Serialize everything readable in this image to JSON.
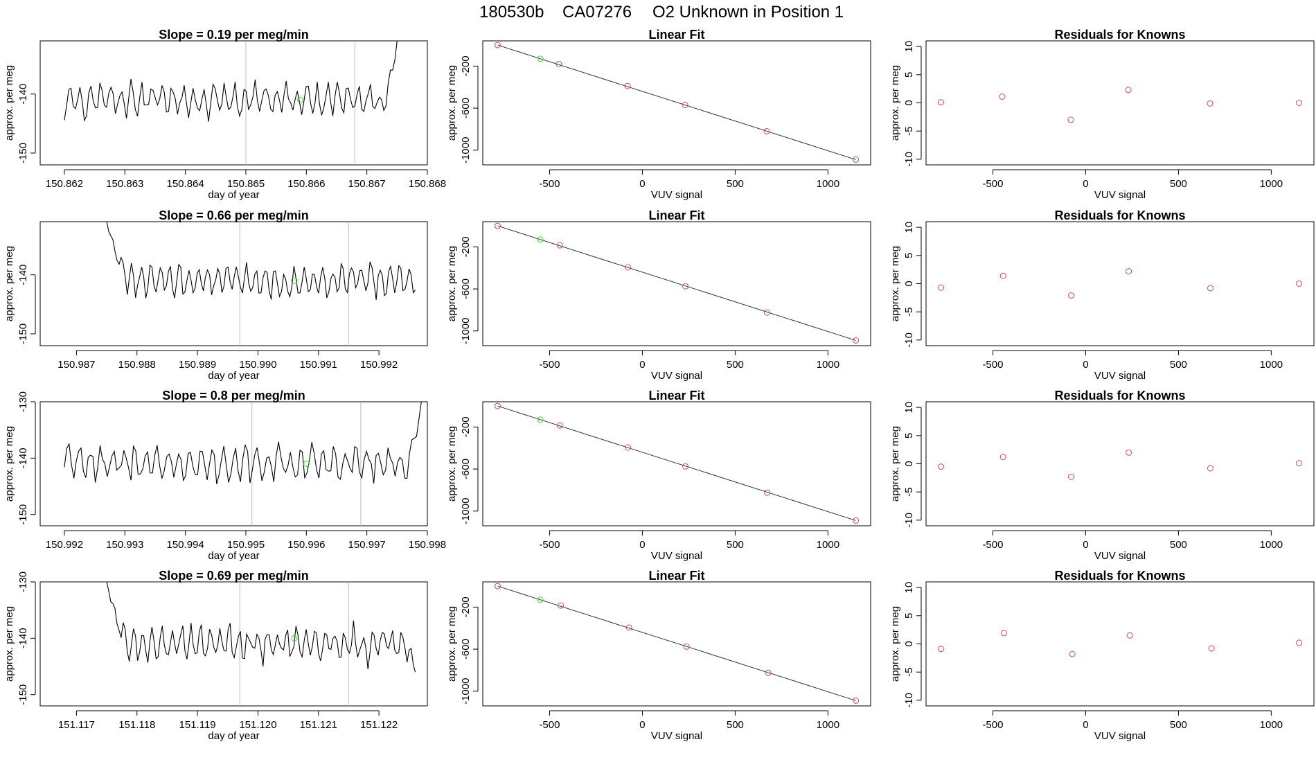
{
  "header": {
    "date_code": "180530b",
    "tank_id": "CA07276",
    "description": "O2 Unknown in Position  1"
  },
  "colors": {
    "trace": "#000000",
    "marker_green": "#33dd33",
    "marker_red": "#c8504a",
    "vline": "#bbbbbb",
    "fitline": "#333333"
  },
  "chart_data": [
    {
      "type": "line",
      "row": 1,
      "column": "trace",
      "title": "Slope =  0.19  per meg/min",
      "xlabel": "day of year",
      "ylabel": "approx. per meg",
      "xlim": [
        150.8616,
        150.868
      ],
      "ylim": [
        -152,
        -131
      ],
      "xticks": [
        150.862,
        150.863,
        150.864,
        150.865,
        150.866,
        150.867,
        150.868
      ],
      "xtick_labels": [
        "150.862",
        "150.863",
        "150.864",
        "150.865",
        "150.866",
        "150.867",
        "150.868"
      ],
      "yticks": [
        -150,
        -140
      ],
      "ytick_labels": [
        "-150",
        "-140"
      ],
      "vlines": [
        150.865,
        150.8668
      ],
      "marker": {
        "x": 150.8659,
        "y": -141
      },
      "x_start": 150.862,
      "x_end": 150.8675,
      "mean": -141,
      "amp": 2.6,
      "seed": 11,
      "start_spike": null,
      "end_spike": {
        "to": -131
      }
    },
    {
      "type": "line",
      "row": 2,
      "column": "trace",
      "title": "Slope =  0.66  per meg/min",
      "xlabel": "day of year",
      "ylabel": "approx. per meg",
      "xlim": [
        150.9864,
        150.9928
      ],
      "ylim": [
        -152,
        -131
      ],
      "xticks": [
        150.987,
        150.988,
        150.989,
        150.99,
        150.991,
        150.992
      ],
      "xtick_labels": [
        "150.987",
        "150.988",
        "150.989",
        "150.990",
        "150.991",
        "150.992"
      ],
      "yticks": [
        -150,
        -140
      ],
      "ytick_labels": [
        "-150",
        "-140"
      ],
      "vlines": [
        150.9897,
        150.9915
      ],
      "marker": {
        "x": 150.9906,
        "y": -141
      },
      "x_start": 150.9875,
      "x_end": 150.9926,
      "mean": -141,
      "amp": 2.6,
      "seed": 23,
      "start_spike": {
        "from": -131
      },
      "end_spike": null
    },
    {
      "type": "line",
      "row": 3,
      "column": "trace",
      "title": "Slope =  0.8  per meg/min",
      "xlabel": "day of year",
      "ylabel": "approx. per meg",
      "xlim": [
        150.9916,
        150.998
      ],
      "ylim": [
        -152,
        -130
      ],
      "xticks": [
        150.992,
        150.993,
        150.994,
        150.995,
        150.996,
        150.997,
        150.998
      ],
      "xtick_labels": [
        "150.992",
        "150.993",
        "150.994",
        "150.995",
        "150.996",
        "150.997",
        "150.998"
      ],
      "yticks": [
        -150,
        -140,
        -130
      ],
      "ytick_labels": [
        "-150",
        "-140",
        "-130"
      ],
      "vlines": [
        150.9951,
        150.9969
      ],
      "marker": {
        "x": 150.996,
        "y": -141
      },
      "x_start": 150.992,
      "x_end": 150.9979,
      "mean": -141,
      "amp": 3.0,
      "seed": 37,
      "start_spike": null,
      "end_spike": {
        "to": -130
      }
    },
    {
      "type": "line",
      "row": 4,
      "column": "trace",
      "title": "Slope =  0.69  per meg/min",
      "xlabel": "day of year",
      "ylabel": "approx. per meg",
      "xlim": [
        151.1164,
        151.1228
      ],
      "ylim": [
        -152,
        -130
      ],
      "xticks": [
        151.117,
        151.118,
        151.119,
        151.12,
        151.121,
        151.122
      ],
      "xtick_labels": [
        "151.117",
        "151.118",
        "151.119",
        "151.120",
        "151.121",
        "151.122"
      ],
      "yticks": [
        -150,
        -140,
        -130
      ],
      "ytick_labels": [
        "-150",
        "-140",
        "-130"
      ],
      "vlines": [
        151.1197,
        151.1215
      ],
      "marker": {
        "x": 151.1206,
        "y": -140
      },
      "x_start": 151.1175,
      "x_end": 151.1226,
      "mean": -141,
      "amp": 2.8,
      "seed": 53,
      "start_spike": {
        "from": -130
      },
      "end_spike": {
        "to": -146
      }
    },
    {
      "type": "scatter",
      "row": 1,
      "column": "fit",
      "title": "Linear Fit",
      "xlabel": "VUV signal",
      "ylabel": "approx. per meg",
      "xlim": [
        -860,
        1230
      ],
      "ylim": [
        -1140,
        40
      ],
      "xticks": [
        -500,
        0,
        500,
        1000
      ],
      "xtick_labels": [
        "-500",
        "0",
        "500",
        "1000"
      ],
      "yticks": [
        -1000,
        -600,
        -200
      ],
      "ytick_labels": [
        "-1000",
        "-600",
        "-200"
      ],
      "fit_line": [
        [
          -780,
          0
        ],
        [
          1150,
          -1090
        ]
      ],
      "knowns": [
        [
          -780,
          0
        ],
        [
          -450,
          -180
        ],
        [
          -80,
          -390
        ],
        [
          230,
          -570
        ],
        [
          670,
          -820
        ],
        [
          1150,
          -1090
        ]
      ],
      "unknown": [
        -550,
        -130
      ]
    },
    {
      "type": "scatter",
      "row": 2,
      "column": "fit",
      "title": "Linear Fit",
      "xlabel": "VUV signal",
      "ylabel": "approx. per meg",
      "xlim": [
        -860,
        1230
      ],
      "ylim": [
        -1140,
        40
      ],
      "xticks": [
        -500,
        0,
        500,
        1000
      ],
      "xtick_labels": [
        "-500",
        "0",
        "500",
        "1000"
      ],
      "yticks": [
        -1000,
        -600,
        -200
      ],
      "ytick_labels": [
        "-1000",
        "-600",
        "-200"
      ],
      "fit_line": [
        [
          -780,
          0
        ],
        [
          1150,
          -1090
        ]
      ],
      "knowns": [
        [
          -780,
          0
        ],
        [
          -445,
          -185
        ],
        [
          -78,
          -395
        ],
        [
          232,
          -575
        ],
        [
          672,
          -825
        ],
        [
          1150,
          -1090
        ]
      ],
      "unknown": [
        -550,
        -130
      ]
    },
    {
      "type": "scatter",
      "row": 3,
      "column": "fit",
      "title": "Linear Fit",
      "xlabel": "VUV signal",
      "ylabel": "approx. per meg",
      "xlim": [
        -860,
        1230
      ],
      "ylim": [
        -1140,
        40
      ],
      "xticks": [
        -500,
        0,
        500,
        1000
      ],
      "xtick_labels": [
        "-500",
        "0",
        "500",
        "1000"
      ],
      "yticks": [
        -1000,
        -600,
        -200
      ],
      "ytick_labels": [
        "-1000",
        "-600",
        "-200"
      ],
      "fit_line": [
        [
          -780,
          0
        ],
        [
          1150,
          -1090
        ]
      ],
      "knowns": [
        [
          -780,
          0
        ],
        [
          -445,
          -185
        ],
        [
          -78,
          -395
        ],
        [
          232,
          -575
        ],
        [
          672,
          -825
        ],
        [
          1150,
          -1090
        ]
      ],
      "unknown": [
        -550,
        -130
      ]
    },
    {
      "type": "scatter",
      "row": 4,
      "column": "fit",
      "title": "Linear Fit",
      "xlabel": "VUV signal",
      "ylabel": "approx. per meg",
      "xlim": [
        -860,
        1230
      ],
      "ylim": [
        -1140,
        40
      ],
      "xticks": [
        -500,
        0,
        500,
        1000
      ],
      "xtick_labels": [
        "-500",
        "0",
        "500",
        "1000"
      ],
      "yticks": [
        -1000,
        -600,
        -200
      ],
      "ytick_labels": [
        "-1000",
        "-600",
        "-200"
      ],
      "fit_line": [
        [
          -780,
          0
        ],
        [
          1150,
          -1090
        ]
      ],
      "knowns": [
        [
          -780,
          0
        ],
        [
          -440,
          -185
        ],
        [
          -72,
          -395
        ],
        [
          238,
          -575
        ],
        [
          678,
          -825
        ],
        [
          1150,
          -1090
        ]
      ],
      "unknown": [
        -550,
        -130
      ]
    },
    {
      "type": "scatter",
      "row": 1,
      "column": "residuals",
      "title": "Residuals for Knowns",
      "xlabel": "VUV signal",
      "ylabel": "approx. per meg",
      "xlim": [
        -860,
        1230
      ],
      "ylim": [
        -11,
        11
      ],
      "xticks": [
        -500,
        0,
        500,
        1000
      ],
      "xtick_labels": [
        "-500",
        "0",
        "500",
        "1000"
      ],
      "yticks": [
        -10,
        -5,
        0,
        5,
        10
      ],
      "ytick_labels": [
        "-10",
        "-5",
        "0",
        "5",
        "10"
      ],
      "points": [
        [
          -780,
          0.1
        ],
        [
          -450,
          1.1
        ],
        [
          -80,
          -3.0
        ],
        [
          230,
          2.3
        ],
        [
          670,
          -0.1
        ],
        [
          1150,
          0.0
        ]
      ]
    },
    {
      "type": "scatter",
      "row": 2,
      "column": "residuals",
      "title": "Residuals for Knowns",
      "xlabel": "VUV signal",
      "ylabel": "approx. per meg",
      "xlim": [
        -860,
        1230
      ],
      "ylim": [
        -11,
        11
      ],
      "xticks": [
        -500,
        0,
        500,
        1000
      ],
      "xtick_labels": [
        "-500",
        "0",
        "500",
        "1000"
      ],
      "yticks": [
        -10,
        -5,
        0,
        5,
        10
      ],
      "ytick_labels": [
        "-10",
        "-5",
        "0",
        "5",
        "10"
      ],
      "points": [
        [
          -780,
          -0.7
        ],
        [
          -445,
          1.4
        ],
        [
          -78,
          -2.1
        ],
        [
          232,
          2.2
        ],
        [
          672,
          -0.8
        ],
        [
          1150,
          0.0
        ]
      ]
    },
    {
      "type": "scatter",
      "row": 3,
      "column": "residuals",
      "title": "Residuals for Knowns",
      "xlabel": "VUV signal",
      "ylabel": "approx. per meg",
      "xlim": [
        -860,
        1230
      ],
      "ylim": [
        -11,
        11
      ],
      "xticks": [
        -500,
        0,
        500,
        1000
      ],
      "xtick_labels": [
        "-500",
        "0",
        "500",
        "1000"
      ],
      "yticks": [
        -10,
        -5,
        0,
        5,
        10
      ],
      "ytick_labels": [
        "-10",
        "-5",
        "0",
        "5",
        "10"
      ],
      "points": [
        [
          -780,
          -0.5
        ],
        [
          -445,
          1.2
        ],
        [
          -78,
          -2.3
        ],
        [
          232,
          2.0
        ],
        [
          672,
          -0.8
        ],
        [
          1150,
          0.1
        ]
      ]
    },
    {
      "type": "scatter",
      "row": 4,
      "column": "residuals",
      "title": "Residuals for Knowns",
      "xlabel": "VUV signal",
      "ylabel": "approx. per meg",
      "xlim": [
        -860,
        1230
      ],
      "ylim": [
        -11,
        11
      ],
      "xticks": [
        -500,
        0,
        500,
        1000
      ],
      "xtick_labels": [
        "-500",
        "0",
        "500",
        "1000"
      ],
      "yticks": [
        -10,
        -5,
        0,
        5,
        10
      ],
      "ytick_labels": [
        "-10",
        "-5",
        "0",
        "5",
        "10"
      ],
      "points": [
        [
          -780,
          -0.9
        ],
        [
          -440,
          1.9
        ],
        [
          -72,
          -1.8
        ],
        [
          238,
          1.5
        ],
        [
          678,
          -0.8
        ],
        [
          1150,
          0.2
        ]
      ]
    }
  ]
}
